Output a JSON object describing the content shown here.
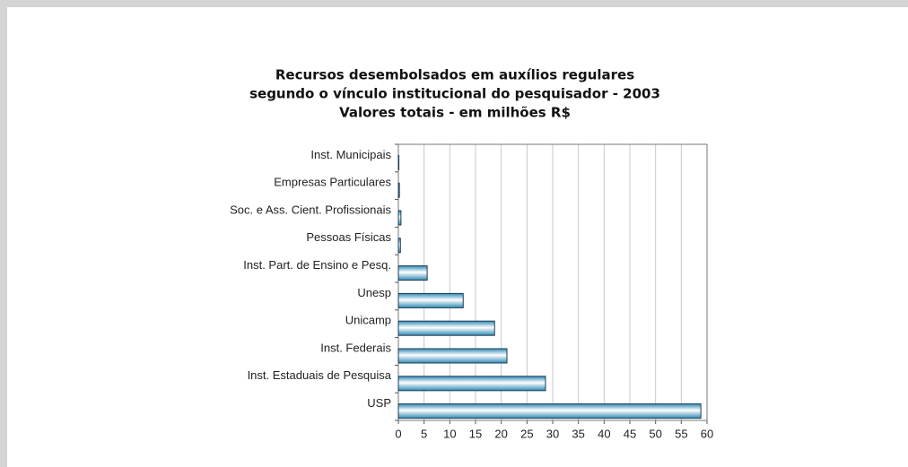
{
  "chart_data": {
    "type": "barh",
    "title": [
      "Recursos desembolsados em auxílios regulares",
      "segundo o vínculo institucional do pesquisador - 2003",
      "Valores totais - em milhões R$"
    ],
    "categories": [
      "Inst. Municipais",
      "Empresas Particulares",
      "Soc. e Ass. Cient. Profissionais",
      "Pessoas Físicas",
      "Inst. Part. de Ensino e Pesq.",
      "Unesp",
      "Unicamp",
      "Inst. Federais",
      "Inst. Estaduais de Pesquisa",
      "USP"
    ],
    "values": [
      0.1,
      0.2,
      0.5,
      0.4,
      5.6,
      12.6,
      18.7,
      21.1,
      28.6,
      58.8
    ],
    "color": "#2f8ab5",
    "xlim": [
      0,
      60
    ],
    "xticks": [
      0,
      5,
      10,
      15,
      20,
      25,
      30,
      35,
      40,
      45,
      50,
      55,
      60
    ],
    "grid": true
  }
}
